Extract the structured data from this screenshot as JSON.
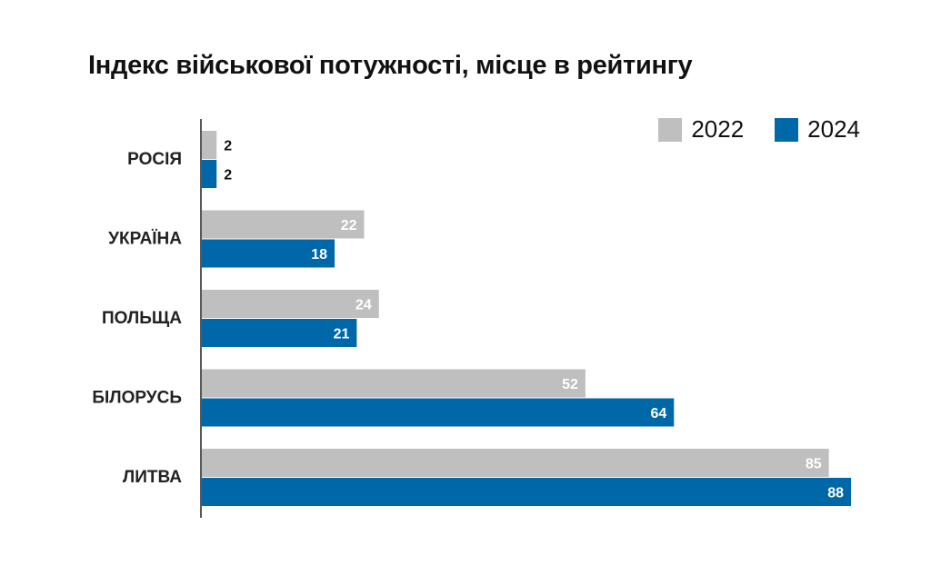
{
  "chart_data": {
    "type": "bar",
    "orientation": "horizontal",
    "title": "Індекс військової потужності, місце в рейтингу",
    "categories": [
      "РОСІЯ",
      "УКРАЇНА",
      "ПОЛЬЩА",
      "БІЛОРУСЬ",
      "ЛИТВА"
    ],
    "series": [
      {
        "name": "2022",
        "color": "#bfbfbf",
        "values": [
          2,
          22,
          24,
          52,
          85
        ]
      },
      {
        "name": "2024",
        "color": "#0068a8",
        "values": [
          2,
          18,
          21,
          64,
          88
        ]
      }
    ],
    "xlim": [
      0,
      88
    ],
    "grid": false,
    "legend": "top-right",
    "data_labels": true
  }
}
